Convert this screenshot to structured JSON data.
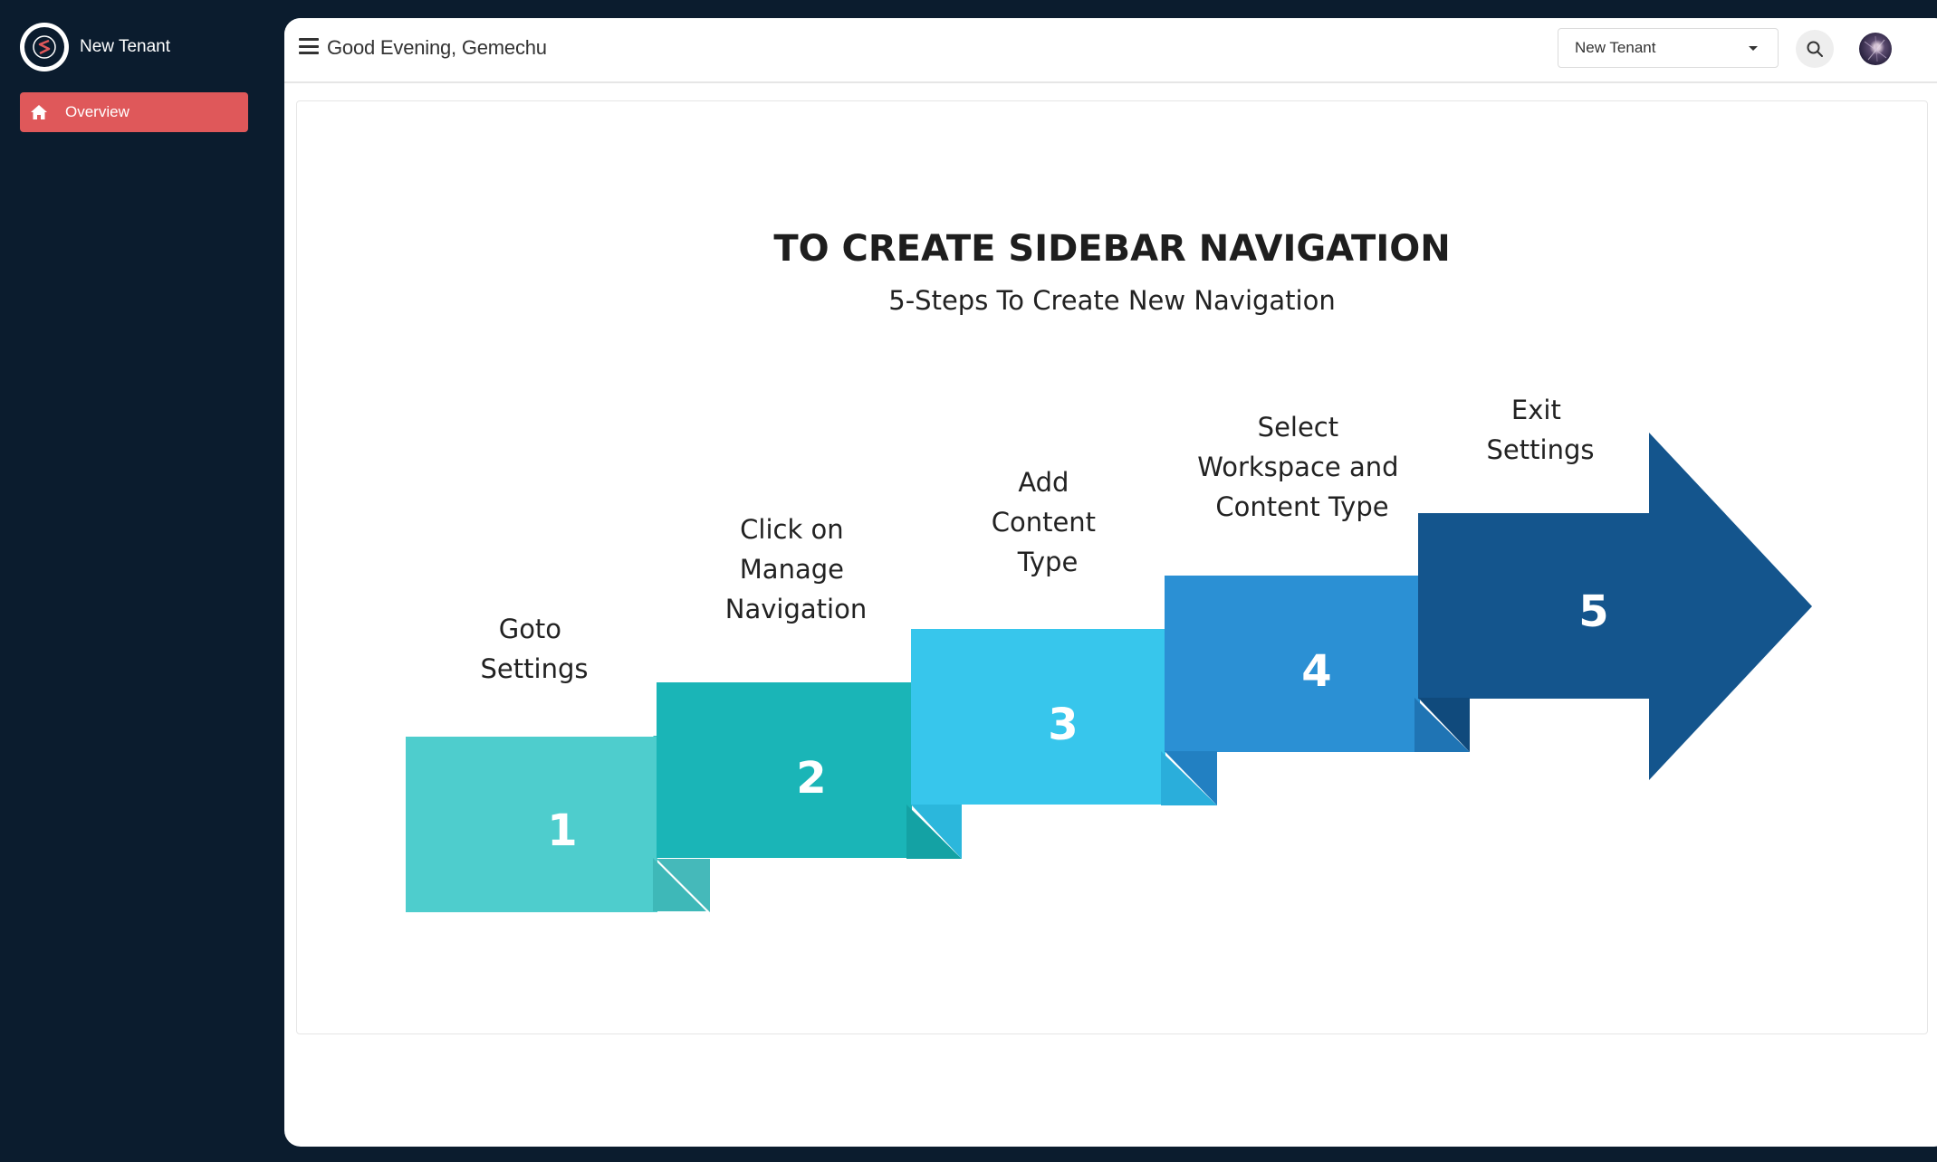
{
  "sidebar": {
    "brand_name": "New Tenant",
    "items": [
      {
        "label": "Overview",
        "icon": "home-icon",
        "active": true
      }
    ]
  },
  "header": {
    "greeting": "Good Evening, Gemechu",
    "tenant_select": {
      "selected": "New Tenant"
    },
    "search_icon": "search-icon",
    "avatar": "user-avatar"
  },
  "infographic": {
    "title": "TO CREATE SIDEBAR NAVIGATION",
    "subtitle": "5-Steps To Create New Navigation",
    "steps": [
      {
        "number": "1",
        "label_lines": [
          "Goto",
          "Settings"
        ],
        "color": "#4ecdcd"
      },
      {
        "number": "2",
        "label_lines": [
          "Click on",
          "Manage",
          "Navigation"
        ],
        "color": "#1ab5b7"
      },
      {
        "number": "3",
        "label_lines": [
          "Add",
          "Content",
          "Type"
        ],
        "color": "#37c6ec"
      },
      {
        "number": "4",
        "label_lines": [
          "Select",
          "Workspace and",
          "Content Type"
        ],
        "color": "#2b90d4"
      },
      {
        "number": "5",
        "label_lines": [
          "Exit",
          "Settings"
        ],
        "color": "#14558d"
      }
    ]
  },
  "colors": {
    "sidebar_bg": "#0b1c2e",
    "active_item": "#df585a"
  }
}
